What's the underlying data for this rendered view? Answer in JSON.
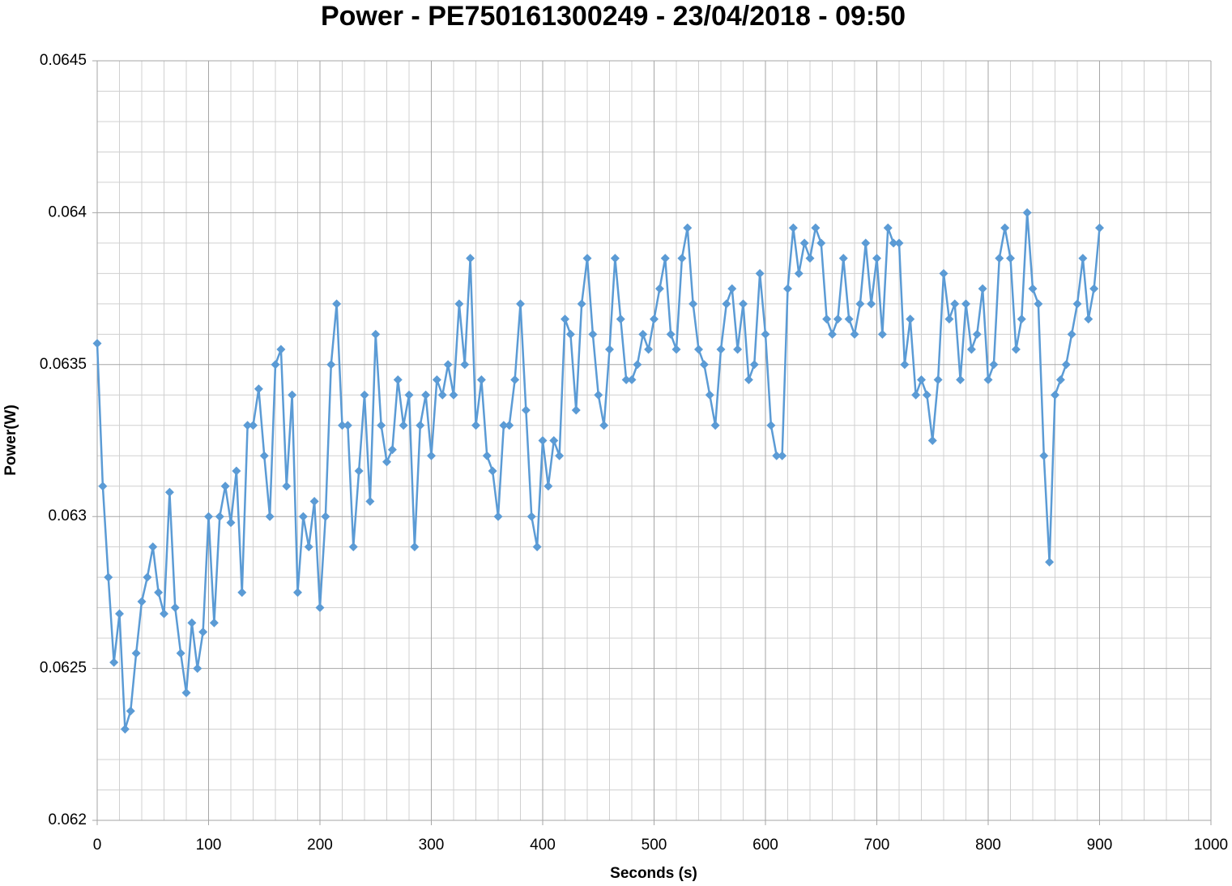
{
  "chart_data": {
    "type": "line",
    "title": "Power - PE750161300249 - 23/04/2018 - 09:50",
    "x_label": "Seconds (s)",
    "y_label": "Power(W)",
    "x": [
      0,
      5,
      10,
      15,
      20,
      25,
      30,
      35,
      40,
      45,
      50,
      55,
      60,
      65,
      70,
      75,
      80,
      85,
      90,
      95,
      100,
      105,
      110,
      115,
      120,
      125,
      130,
      135,
      140,
      145,
      150,
      155,
      160,
      165,
      170,
      175,
      180,
      185,
      190,
      195,
      200,
      205,
      210,
      215,
      220,
      225,
      230,
      235,
      240,
      245,
      250,
      255,
      260,
      265,
      270,
      275,
      280,
      285,
      290,
      295,
      300,
      305,
      310,
      315,
      320,
      325,
      330,
      335,
      340,
      345,
      350,
      355,
      360,
      365,
      370,
      375,
      380,
      385,
      390,
      395,
      400,
      405,
      410,
      415,
      420,
      425,
      430,
      435,
      440,
      445,
      450,
      455,
      460,
      465,
      470,
      475,
      480,
      485,
      490,
      495,
      500,
      505,
      510,
      515,
      520,
      525,
      530,
      535,
      540,
      545,
      550,
      555,
      560,
      565,
      570,
      575,
      580,
      585,
      590,
      595,
      600,
      605,
      610,
      615,
      620,
      625,
      630,
      635,
      640,
      645,
      650,
      655,
      660,
      665,
      670,
      675,
      680,
      685,
      690,
      695,
      700,
      705,
      710,
      715,
      720,
      725,
      730,
      735,
      740,
      745,
      750,
      755,
      760,
      765,
      770,
      775,
      780,
      785,
      790,
      795,
      800,
      805,
      810,
      815,
      820,
      825,
      830,
      835,
      840,
      845,
      850,
      855,
      860,
      865,
      870,
      875,
      880,
      885,
      890,
      895,
      900
    ],
    "series": [
      {
        "name": "Power(W)",
        "color": "#5b9bd5",
        "values": [
          0.06357,
          0.0631,
          0.0628,
          0.06252,
          0.06268,
          0.0623,
          0.06236,
          0.06255,
          0.06272,
          0.0628,
          0.0629,
          0.06275,
          0.06268,
          0.06308,
          0.0627,
          0.06255,
          0.06242,
          0.06265,
          0.0625,
          0.06262,
          0.063,
          0.06265,
          0.063,
          0.0631,
          0.06298,
          0.06315,
          0.06275,
          0.0633,
          0.0633,
          0.06342,
          0.0632,
          0.063,
          0.0635,
          0.06355,
          0.0631,
          0.0634,
          0.06275,
          0.063,
          0.0629,
          0.06305,
          0.0627,
          0.063,
          0.0635,
          0.0637,
          0.0633,
          0.0633,
          0.0629,
          0.06315,
          0.0634,
          0.06305,
          0.0636,
          0.0633,
          0.06318,
          0.06322,
          0.06345,
          0.0633,
          0.0634,
          0.0629,
          0.0633,
          0.0634,
          0.0632,
          0.06345,
          0.0634,
          0.0635,
          0.0634,
          0.0637,
          0.0635,
          0.06385,
          0.0633,
          0.06345,
          0.0632,
          0.06315,
          0.063,
          0.0633,
          0.0633,
          0.06345,
          0.0637,
          0.06335,
          0.063,
          0.0629,
          0.06325,
          0.0631,
          0.06325,
          0.0632,
          0.06365,
          0.0636,
          0.06335,
          0.0637,
          0.06385,
          0.0636,
          0.0634,
          0.0633,
          0.06355,
          0.06385,
          0.06365,
          0.06345,
          0.06345,
          0.0635,
          0.0636,
          0.06355,
          0.06365,
          0.06375,
          0.06385,
          0.0636,
          0.06355,
          0.06385,
          0.06395,
          0.0637,
          0.06355,
          0.0635,
          0.0634,
          0.0633,
          0.06355,
          0.0637,
          0.06375,
          0.06355,
          0.0637,
          0.06345,
          0.0635,
          0.0638,
          0.0636,
          0.0633,
          0.0632,
          0.0632,
          0.06375,
          0.06395,
          0.0638,
          0.0639,
          0.06385,
          0.06395,
          0.0639,
          0.06365,
          0.0636,
          0.06365,
          0.06385,
          0.06365,
          0.0636,
          0.0637,
          0.0639,
          0.0637,
          0.06385,
          0.0636,
          0.06395,
          0.0639,
          0.0639,
          0.0635,
          0.06365,
          0.0634,
          0.06345,
          0.0634,
          0.06325,
          0.06345,
          0.0638,
          0.06365,
          0.0637,
          0.06345,
          0.0637,
          0.06355,
          0.0636,
          0.06375,
          0.06345,
          0.0635,
          0.06385,
          0.06395,
          0.06385,
          0.06355,
          0.06365,
          0.064,
          0.06375,
          0.0637,
          0.0632,
          0.06285,
          0.0634,
          0.06345,
          0.0635,
          0.0636,
          0.0637,
          0.06385,
          0.06365,
          0.06375,
          0.06395
        ]
      }
    ],
    "xlim": [
      0,
      1000
    ],
    "xticks": [
      0,
      100,
      200,
      300,
      400,
      500,
      600,
      700,
      800,
      900,
      1000
    ],
    "ylim": [
      0.062,
      0.0645
    ],
    "yticks": [
      0.062,
      0.0625,
      0.063,
      0.0635,
      0.064,
      0.0645
    ],
    "xminorticks": [
      20,
      40,
      60,
      80,
      120,
      140,
      160,
      180,
      220,
      240,
      260,
      280,
      320,
      340,
      360,
      380,
      420,
      440,
      460,
      480,
      520,
      540,
      560,
      580,
      620,
      640,
      660,
      680,
      720,
      740,
      760,
      780,
      820,
      840,
      860,
      880,
      920,
      940,
      960,
      980
    ],
    "yminorticks": [
      0.0621,
      0.0622,
      0.0623,
      0.0624,
      0.0626,
      0.0627,
      0.0628,
      0.0629,
      0.0631,
      0.0632,
      0.0633,
      0.0634,
      0.0636,
      0.0637,
      0.0638,
      0.0639,
      0.0641,
      0.0642,
      0.0643,
      0.0644
    ],
    "grid": true,
    "marker": "diamond"
  }
}
